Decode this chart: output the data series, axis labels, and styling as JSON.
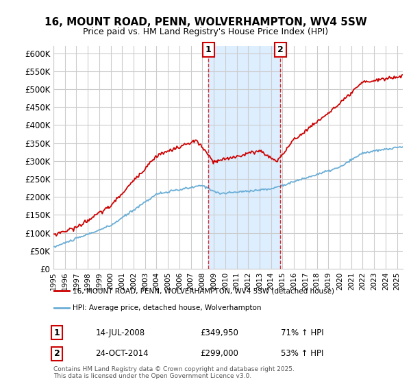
{
  "title": "16, MOUNT ROAD, PENN, WOLVERHAMPTON, WV4 5SW",
  "subtitle": "Price paid vs. HM Land Registry's House Price Index (HPI)",
  "ylabel_ticks": [
    "£0",
    "£50K",
    "£100K",
    "£150K",
    "£200K",
    "£250K",
    "£300K",
    "£350K",
    "£400K",
    "£450K",
    "£500K",
    "£550K",
    "£600K"
  ],
  "ytick_values": [
    0,
    50000,
    100000,
    150000,
    200000,
    250000,
    300000,
    350000,
    400000,
    450000,
    500000,
    550000,
    600000
  ],
  "ylim": [
    0,
    620000
  ],
  "xlim_start": 1995.0,
  "xlim_end": 2025.5,
  "marker1_x": 2008.54,
  "marker1_label": "1",
  "marker1_date": "14-JUL-2008",
  "marker1_price": "£349,950",
  "marker1_hpi": "71% ↑ HPI",
  "marker2_x": 2014.82,
  "marker2_label": "2",
  "marker2_date": "24-OCT-2014",
  "marker2_price": "£299,000",
  "marker2_hpi": "53% ↑ HPI",
  "line1_color": "#cc0000",
  "line2_color": "#6baed6",
  "shading_color": "#ddeeff",
  "marker_line_color": "#cc0000",
  "grid_color": "#cccccc",
  "background_color": "#ffffff",
  "legend_label1": "16, MOUNT ROAD, PENN, WOLVERHAMPTON, WV4 5SW (detached house)",
  "legend_label2": "HPI: Average price, detached house, Wolverhampton",
  "footer": "Contains HM Land Registry data © Crown copyright and database right 2025.\nThis data is licensed under the Open Government Licence v3.0.",
  "xtick_years": [
    1995,
    1996,
    1997,
    1998,
    1999,
    2000,
    2001,
    2002,
    2003,
    2004,
    2005,
    2006,
    2007,
    2008,
    2009,
    2010,
    2011,
    2012,
    2013,
    2014,
    2015,
    2016,
    2017,
    2018,
    2019,
    2020,
    2021,
    2022,
    2023,
    2024,
    2025
  ]
}
